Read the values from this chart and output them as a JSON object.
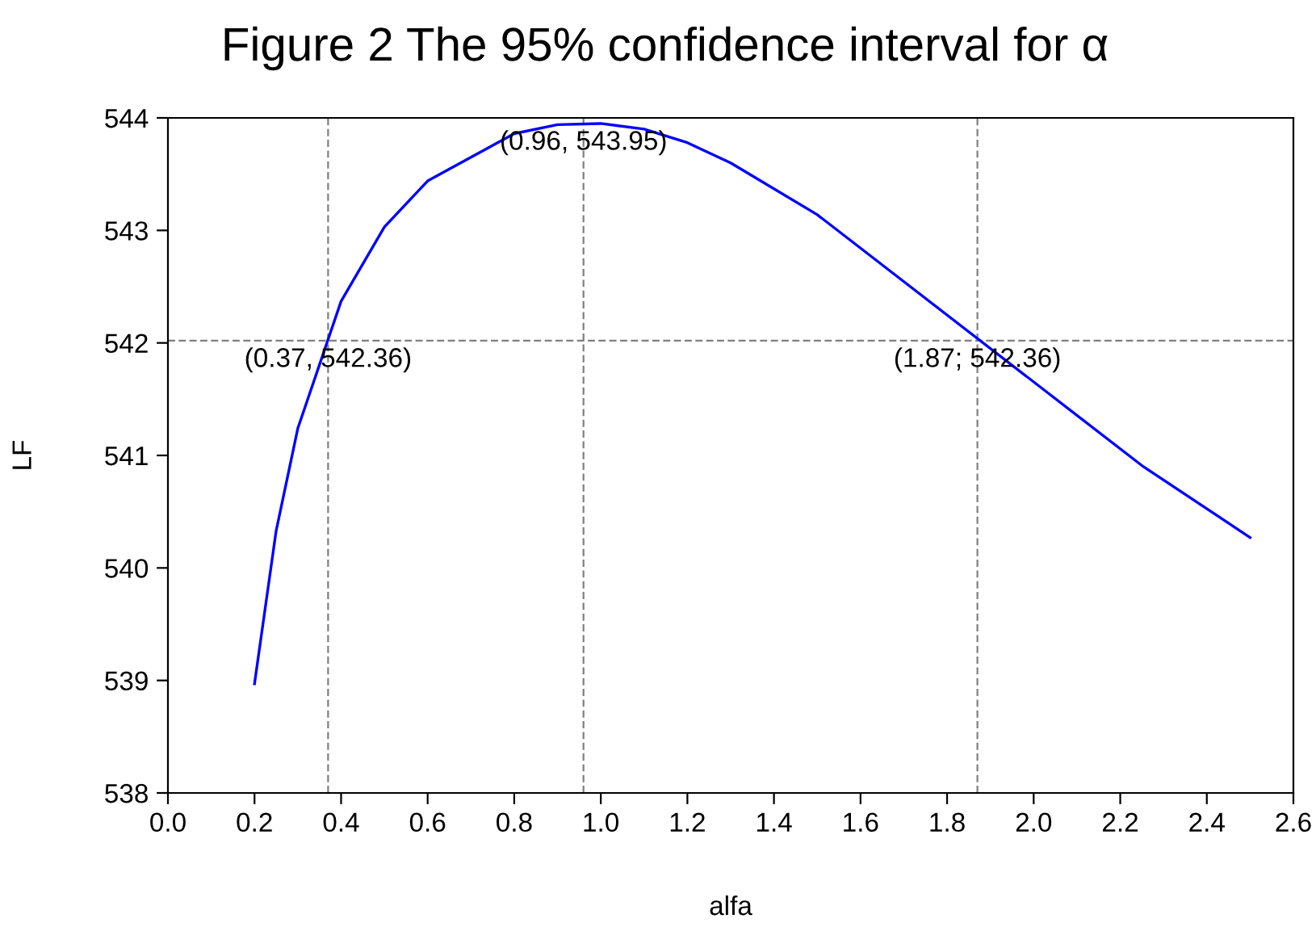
{
  "chart_data": {
    "type": "line",
    "title": "Figure 2 The 95% confidence interval for α",
    "xlabel": "alfa",
    "ylabel": "LF",
    "x": [
      0.2,
      0.25,
      0.3,
      0.4,
      0.5,
      0.6,
      0.8,
      0.9,
      1.0,
      1.1,
      1.2,
      1.3,
      1.5,
      2.25,
      2.5
    ],
    "series": [
      {
        "color": "#0000ff",
        "values": [
          538.97,
          540.33,
          541.24,
          542.37,
          543.03,
          543.44,
          543.86,
          543.94,
          543.95,
          543.9,
          543.78,
          543.6,
          543.14,
          540.91,
          540.27
        ]
      }
    ],
    "xlim": [
      0.0,
      2.6
    ],
    "xticks": [
      {
        "value": 0.0,
        "label": "0.0"
      },
      {
        "value": 0.2,
        "label": "0.2"
      },
      {
        "value": 0.4,
        "label": "0.4"
      },
      {
        "value": 0.6,
        "label": "0.6"
      },
      {
        "value": 0.8,
        "label": "0.8"
      },
      {
        "value": 1.0,
        "label": "1.0"
      },
      {
        "value": 1.2,
        "label": "1.2"
      },
      {
        "value": 1.4,
        "label": "1.4"
      },
      {
        "value": 1.6,
        "label": "1.6"
      },
      {
        "value": 1.8,
        "label": "1.8"
      },
      {
        "value": 2.0,
        "label": "2.0"
      },
      {
        "value": 2.2,
        "label": "2.2"
      },
      {
        "value": 2.4,
        "label": "2.4"
      },
      {
        "value": 2.6,
        "label": "2.6"
      }
    ],
    "ylim": [
      538,
      544
    ],
    "yticks": [
      538,
      539,
      540,
      541,
      542,
      543,
      544
    ],
    "ref_lines": [
      {
        "axis": "x",
        "value": 0.37,
        "color": "#808080",
        "line_style": "dashed"
      },
      {
        "axis": "x",
        "value": 0.96,
        "color": "#808080",
        "line_style": "dashed"
      },
      {
        "axis": "x",
        "value": 1.87,
        "color": "#808080",
        "line_style": "dashed"
      },
      {
        "axis": "y",
        "value": 542.02,
        "color": "#808080",
        "line_style": "dashed"
      }
    ],
    "annotations": [
      {
        "text": "(0.37, 542.36)",
        "x": 0.37,
        "y": 542.02
      },
      {
        "text": "(0.96, 543.95)",
        "x": 0.96,
        "y": 543.95
      },
      {
        "text": "(1.87; 542.36)",
        "x": 1.87,
        "y": 542.02
      }
    ],
    "grid": false,
    "legend": false,
    "marker": "none",
    "line_style": "solid"
  }
}
